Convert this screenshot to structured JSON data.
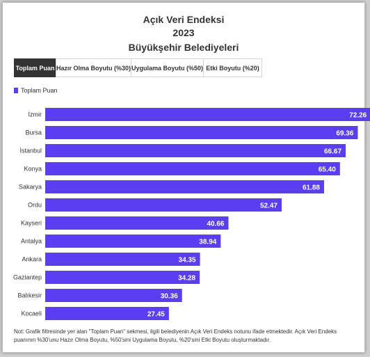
{
  "header": {
    "title_line1": "Açık Veri Endeksi",
    "title_line2": "2023",
    "title_line3": "Büyükşehir Belediyeleri"
  },
  "tabs": [
    {
      "label": "Toplam Puan",
      "active": true
    },
    {
      "label": "Hazır Olma Boyutu (%30)",
      "active": false
    },
    {
      "label": "Uygulama Boyutu (%50)",
      "active": false
    },
    {
      "label": "Etki Boyutu (%20)",
      "active": false
    }
  ],
  "legend": {
    "label": "Toplam Puan"
  },
  "colors": {
    "bar": "#5b3ef0",
    "label_text": "#ffffff",
    "active_tab": "#333333"
  },
  "chart_data": {
    "type": "bar",
    "orientation": "horizontal",
    "categories": [
      "İzmir",
      "Bursa",
      "İstanbul",
      "Konya",
      "Sakarya",
      "Ordu",
      "Kayseri",
      "Antalya",
      "Ankara",
      "Gaziantep",
      "Balıkesir",
      "Kocaeli"
    ],
    "series": [
      {
        "name": "Toplam Puan",
        "values": [
          72.26,
          69.36,
          66.67,
          65.4,
          61.88,
          52.47,
          40.66,
          38.94,
          34.35,
          34.28,
          30.36,
          27.45
        ]
      }
    ],
    "value_labels": [
      "72.26",
      "69.36",
      "66.67",
      "65.40",
      "61.88",
      "52.47",
      "40.66",
      "38.94",
      "34.35",
      "34.28",
      "30.36",
      "27.45"
    ],
    "xlim": [
      0,
      100
    ],
    "grid": false,
    "legend_position": "top-left"
  },
  "note": "Not: Grafik filtresinde yer alan \"Toplam Puan\" sekmesi, ilgili belediyenin Açık Veri Endeks notunu ifade etmektedir. Açık Veri Endeks puanının %30'unu Hazır Olma Boyutu, %50'sini Uygulama Boyutu, %20'sini Etki Boyutu oluşturmaktadır."
}
